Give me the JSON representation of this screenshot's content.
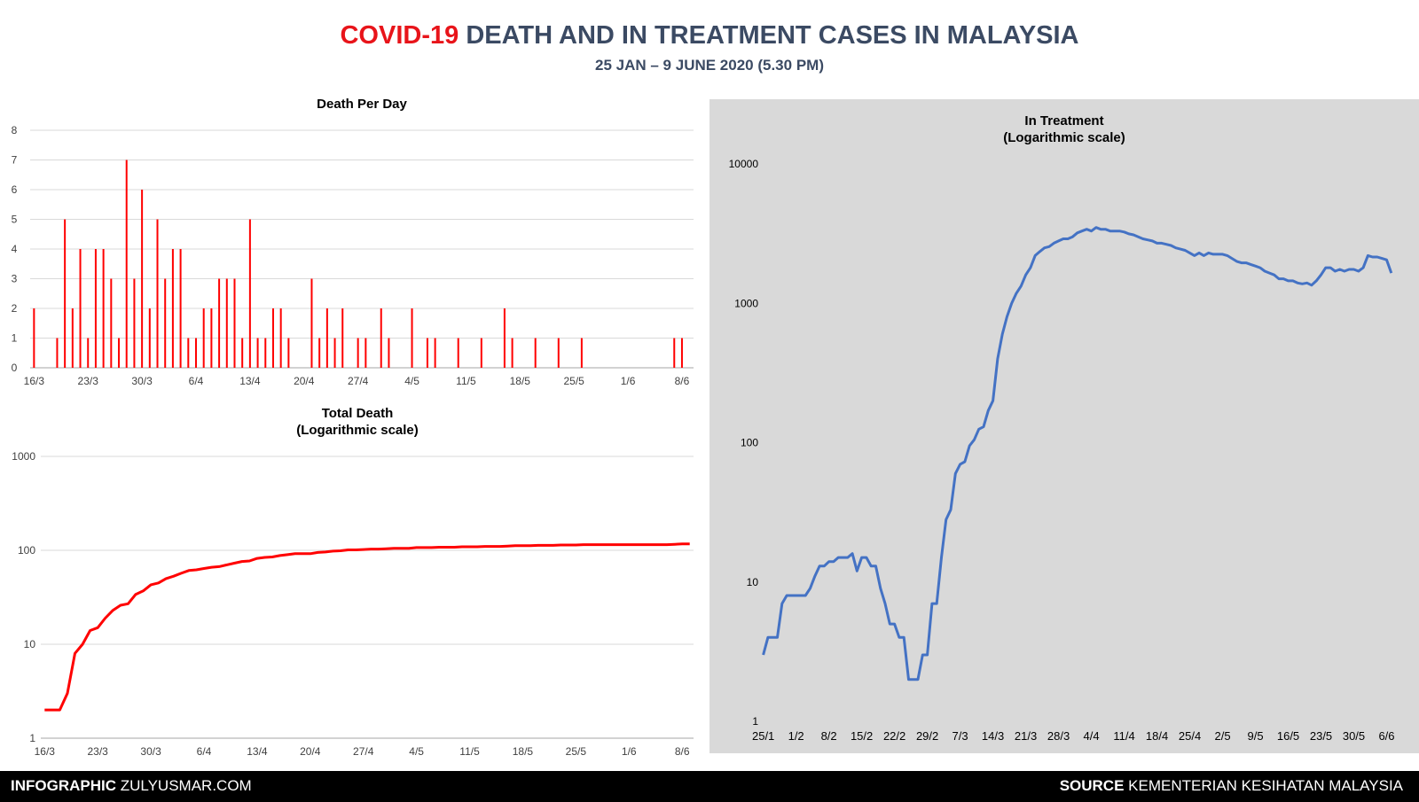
{
  "header": {
    "title_highlight": "COVID-19",
    "title_rest": "DEATH AND IN TREATMENT CASES IN MALAYSIA",
    "subtitle": "25 JAN – 9 JUNE 2020 (5.30 PM)"
  },
  "footer": {
    "left_bold": "INFOGRAPHIC",
    "left_text": "ZULYUSMAR.COM",
    "right_bold": "SOURCE",
    "right_text": "KEMENTERIAN KESIHATAN MALAYSIA"
  },
  "colors": {
    "title_red": "#e8141a",
    "title_dark": "#3b4a63",
    "series_red": "#ff0000",
    "series_blue": "#4472c4",
    "panel_gray": "#d9d9d9",
    "footer_bg": "#000000"
  },
  "chart_data": [
    {
      "id": "death-per-day",
      "type": "bar",
      "title": "Death Per Day",
      "ylim": [
        0,
        8
      ],
      "yticks": [
        "0",
        "1",
        "2",
        "3",
        "4",
        "5",
        "6",
        "7",
        "8"
      ],
      "grid": true,
      "x_start": "16/3",
      "x_count": 86,
      "xtick_labels": [
        "16/3",
        "23/3",
        "30/3",
        "6/4",
        "13/4",
        "20/4",
        "27/4",
        "4/5",
        "11/5",
        "18/5",
        "25/5",
        "1/6",
        "8/6"
      ],
      "values": [
        2,
        0,
        0,
        1,
        5,
        2,
        4,
        1,
        4,
        4,
        3,
        1,
        7,
        3,
        6,
        2,
        5,
        3,
        4,
        4,
        1,
        1,
        2,
        2,
        3,
        3,
        3,
        1,
        5,
        1,
        1,
        2,
        2,
        1,
        0,
        0,
        3,
        1,
        2,
        1,
        2,
        0,
        1,
        1,
        0,
        2,
        1,
        0,
        0,
        2,
        0,
        1,
        1,
        0,
        0,
        1,
        0,
        0,
        1,
        0,
        0,
        2,
        1,
        0,
        0,
        1,
        0,
        0,
        1,
        0,
        0,
        1,
        0,
        0,
        0,
        0,
        0,
        0,
        0,
        0,
        0,
        0,
        0,
        1,
        1,
        0
      ]
    },
    {
      "id": "total-death",
      "type": "line",
      "title": "Total Death",
      "subtitle": "(Logarithmic scale)",
      "yscale": "log",
      "ylim": [
        1,
        1000
      ],
      "yticks": [
        "1",
        "10",
        "100",
        "1000"
      ],
      "grid": true,
      "x_start": "16/3",
      "x_count": 86,
      "xtick_labels": [
        "16/3",
        "23/3",
        "30/3",
        "6/4",
        "13/4",
        "20/4",
        "27/4",
        "4/5",
        "11/5",
        "18/5",
        "25/5",
        "1/6",
        "8/6"
      ],
      "series": [
        {
          "values": [
            2,
            2,
            2,
            3,
            8,
            10,
            14,
            15,
            19,
            23,
            26,
            27,
            34,
            37,
            43,
            45,
            50,
            53,
            57,
            61,
            62,
            64,
            66,
            67,
            70,
            73,
            76,
            77,
            82,
            84,
            85,
            88,
            90,
            92,
            92,
            92,
            95,
            96,
            98,
            99,
            101,
            101,
            102,
            103,
            103,
            104,
            105,
            105,
            105,
            107,
            107,
            107,
            108,
            108,
            108,
            109,
            109,
            109,
            110,
            110,
            110,
            111,
            112,
            112,
            112,
            113,
            113,
            113,
            114,
            114,
            114,
            115,
            115,
            115,
            115,
            115,
            115,
            115,
            115,
            115,
            115,
            115,
            115,
            116,
            117,
            117
          ]
        }
      ]
    },
    {
      "id": "in-treatment",
      "type": "line",
      "title": "In Treatment",
      "subtitle": "(Logarithmic scale)",
      "yscale": "log",
      "ylim": [
        1,
        10000
      ],
      "yticks": [
        "1",
        "10",
        "100",
        "1000",
        "10000"
      ],
      "grid": false,
      "x_start": "25/1",
      "x_count": 137,
      "xtick_labels": [
        "25/1",
        "1/2",
        "8/2",
        "15/2",
        "22/2",
        "29/2",
        "7/3",
        "14/3",
        "21/3",
        "28/3",
        "4/4",
        "11/4",
        "18/4",
        "25/4",
        "2/5",
        "9/5",
        "16/5",
        "23/5",
        "30/5",
        "6/6"
      ],
      "series": [
        {
          "values": [
            3,
            4,
            4,
            4,
            7,
            8,
            8,
            8,
            8,
            8,
            9,
            11,
            13,
            13,
            14,
            14,
            15,
            15,
            15,
            16,
            12,
            15,
            15,
            13,
            13,
            9,
            7,
            5,
            5,
            4,
            4,
            2,
            2,
            2,
            3,
            3,
            7,
            7,
            15,
            28,
            33,
            60,
            70,
            73,
            95,
            105,
            125,
            130,
            170,
            200,
            400,
            600,
            800,
            1000,
            1180,
            1330,
            1600,
            1800,
            2200,
            2350,
            2500,
            2550,
            2700,
            2800,
            2900,
            2900,
            3000,
            3200,
            3300,
            3400,
            3300,
            3500,
            3400,
            3400,
            3300,
            3300,
            3300,
            3250,
            3150,
            3100,
            3000,
            2900,
            2850,
            2800,
            2700,
            2700,
            2650,
            2600,
            2500,
            2450,
            2400,
            2300,
            2200,
            2300,
            2200,
            2300,
            2250,
            2250,
            2250,
            2200,
            2100,
            2000,
            1950,
            1950,
            1900,
            1850,
            1800,
            1700,
            1650,
            1600,
            1500,
            1500,
            1450,
            1450,
            1400,
            1380,
            1400,
            1350,
            1450,
            1600,
            1800,
            1800,
            1700,
            1750,
            1700,
            1750,
            1750,
            1700,
            1800,
            2200,
            2150,
            2150,
            2100,
            2050,
            1650
          ]
        }
      ]
    }
  ]
}
